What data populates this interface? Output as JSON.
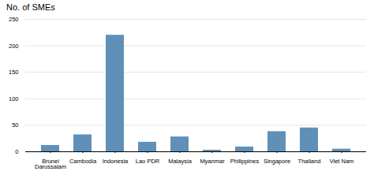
{
  "chart_data": {
    "type": "bar",
    "title": "No. of SMEs",
    "categories": [
      "Brunei\nDarussalam",
      "Cambodia",
      "Indonesia",
      "Lao PDR",
      "Malaysia",
      "Myanmar",
      "Philippines",
      "Singapore",
      "Thailand",
      "Viet Nam"
    ],
    "values": [
      12,
      32,
      220,
      18,
      28,
      3,
      9,
      38,
      45,
      5
    ],
    "color": "#6090b8",
    "ylim": [
      0,
      250
    ],
    "yticks": [
      0,
      50,
      100,
      150,
      200,
      250
    ],
    "grid": true
  }
}
